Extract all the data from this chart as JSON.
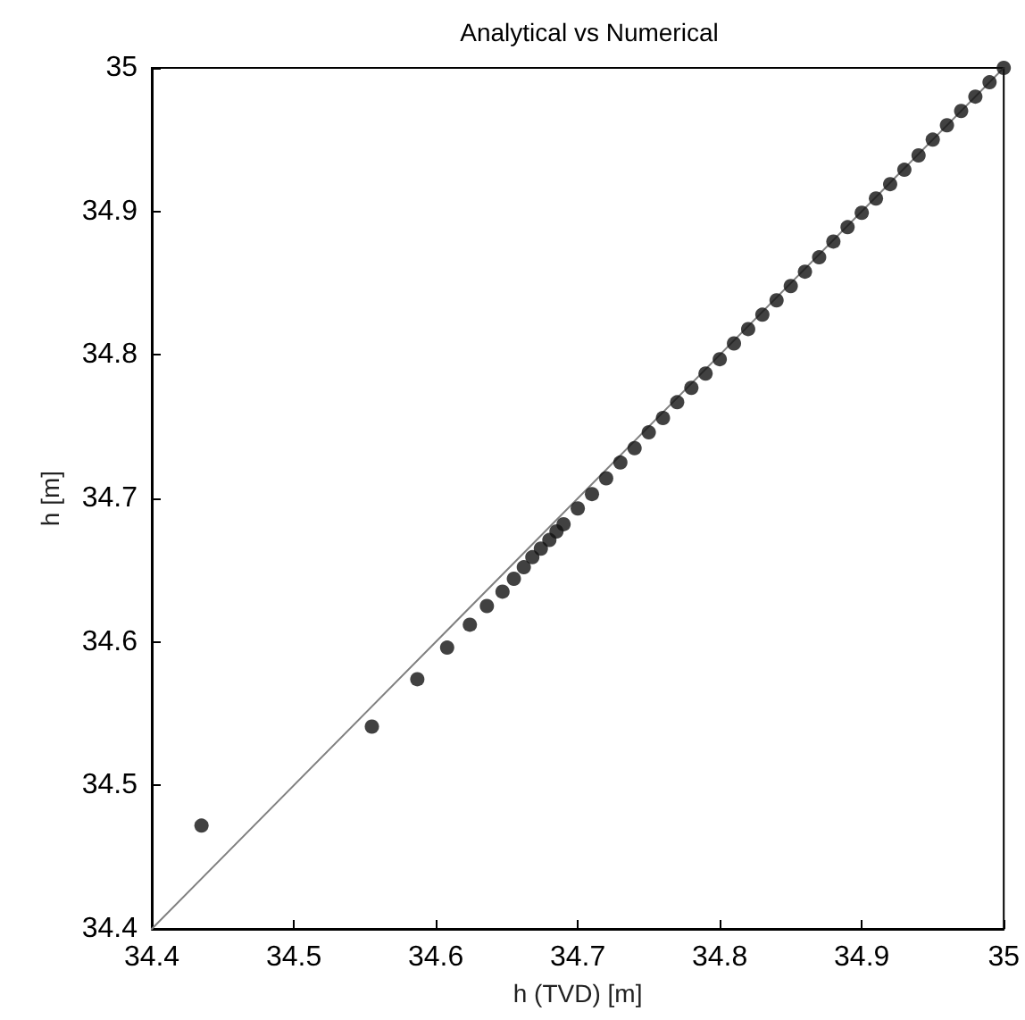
{
  "chart_data": {
    "type": "scatter",
    "title": "Analytical vs Numerical",
    "xlabel": "h (TVD) [m]",
    "ylabel": "h [m]",
    "xlim": [
      34.4,
      35
    ],
    "ylim": [
      34.4,
      35
    ],
    "xticks": [
      34.4,
      34.5,
      34.6,
      34.7,
      34.8,
      34.9,
      35
    ],
    "yticks": [
      34.4,
      34.5,
      34.6,
      34.7,
      34.8,
      34.9,
      35
    ],
    "grid": false,
    "marker": "circle",
    "series": [
      {
        "type": "line",
        "color": "#808080",
        "line_style": "solid",
        "marker": "none",
        "x": [
          34.4,
          35
        ],
        "values": [
          34.4,
          35
        ]
      },
      {
        "color": "#111111",
        "x": [
          34.435,
          34.555,
          34.587,
          34.608,
          34.624,
          34.636,
          34.647,
          34.655,
          34.662,
          34.668,
          34.674,
          34.68,
          34.685,
          34.69,
          34.7,
          34.71,
          34.72,
          34.73,
          34.74,
          34.75,
          34.76,
          34.77,
          34.78,
          34.79,
          34.8,
          34.81,
          34.82,
          34.83,
          34.84,
          34.85,
          34.86,
          34.87,
          34.88,
          34.89,
          34.9,
          34.91,
          34.92,
          34.93,
          34.94,
          34.95,
          34.96,
          34.97,
          34.98,
          34.99,
          35
        ],
        "values": [
          34.472,
          34.541,
          34.574,
          34.596,
          34.612,
          34.625,
          34.635,
          34.644,
          34.652,
          34.659,
          34.665,
          34.671,
          34.677,
          34.682,
          34.693,
          34.703,
          34.714,
          34.725,
          34.735,
          34.746,
          34.756,
          34.767,
          34.777,
          34.787,
          34.797,
          34.808,
          34.818,
          34.828,
          34.838,
          34.848,
          34.858,
          34.868,
          34.879,
          34.889,
          34.899,
          34.909,
          34.919,
          34.929,
          34.939,
          34.95,
          34.96,
          34.97,
          34.98,
          34.99,
          35
        ]
      }
    ]
  }
}
